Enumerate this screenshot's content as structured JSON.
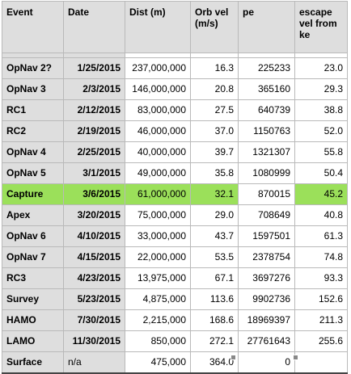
{
  "headers": {
    "event": "Event",
    "date": "Date",
    "dist": "Dist (m)",
    "orb": "Orb vel (m/s)",
    "pe": "pe",
    "esc": "escape vel from ke"
  },
  "rows": [
    {
      "event": "OpNav 2?",
      "date": "1/25/2015",
      "dist": "237,000,000",
      "orb": "16.3",
      "pe": "225233",
      "esc": "23.0"
    },
    {
      "event": "OpNav 3",
      "date": "2/3/2015",
      "dist": "146,000,000",
      "orb": "20.8",
      "pe": "365160",
      "esc": "29.3"
    },
    {
      "event": "RC1",
      "date": "2/12/2015",
      "dist": "83,000,000",
      "orb": "27.5",
      "pe": "640739",
      "esc": "38.8"
    },
    {
      "event": "RC2",
      "date": "2/19/2015",
      "dist": "46,000,000",
      "orb": "37.0",
      "pe": "1150763",
      "esc": "52.0"
    },
    {
      "event": "OpNav 4",
      "date": "2/25/2015",
      "dist": "40,000,000",
      "orb": "39.7",
      "pe": "1321307",
      "esc": "55.8"
    },
    {
      "event": "OpNav 5",
      "date": "3/1/2015",
      "dist": "49,000,000",
      "orb": "35.8",
      "pe": "1080999",
      "esc": "50.4"
    },
    {
      "event": "Capture",
      "date": "3/6/2015",
      "dist": "61,000,000",
      "orb": "32.1",
      "pe": "870015",
      "esc": "45.2"
    },
    {
      "event": "Apex",
      "date": "3/20/2015",
      "dist": "75,000,000",
      "orb": "29.0",
      "pe": "708649",
      "esc": "40.8"
    },
    {
      "event": "OpNav 6",
      "date": "4/10/2015",
      "dist": "33,000,000",
      "orb": "43.7",
      "pe": "1597501",
      "esc": "61.3"
    },
    {
      "event": "OpNav 7",
      "date": "4/15/2015",
      "dist": "22,000,000",
      "orb": "53.5",
      "pe": "2378754",
      "esc": "74.8"
    },
    {
      "event": "RC3",
      "date": "4/23/2015",
      "dist": "13,975,000",
      "orb": "67.1",
      "pe": "3697276",
      "esc": "93.3"
    },
    {
      "event": "Survey",
      "date": "5/23/2015",
      "dist": "4,875,000",
      "orb": "113.6",
      "pe": "9902736",
      "esc": "152.6"
    },
    {
      "event": "HAMO",
      "date": "7/30/2015",
      "dist": "2,215,000",
      "orb": "168.6",
      "pe": "18969397",
      "esc": "211.3"
    },
    {
      "event": "LAMO",
      "date": "11/30/2015",
      "dist": "850,000",
      "orb": "272.1",
      "pe": "27761643",
      "esc": "255.6"
    },
    {
      "event": "Surface",
      "date": "n/a",
      "dist": "475,000",
      "orb": "364.0",
      "pe": "0",
      "esc": ""
    }
  ],
  "highlight_row": "Capture",
  "colors": {
    "highlight": "#9be05a",
    "label_bg": "#dedede"
  }
}
